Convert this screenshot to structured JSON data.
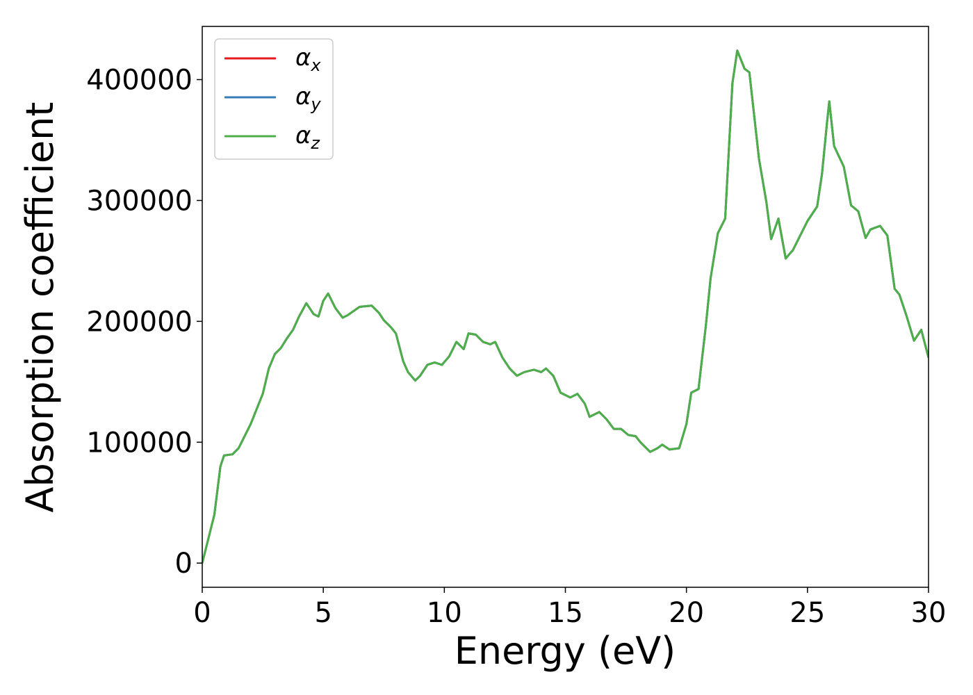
{
  "chart_data": {
    "type": "line",
    "xlabel": "Energy (eV)",
    "ylabel": "Absorption coefficient",
    "x": [
      0,
      0.25,
      0.5,
      0.75,
      0.9,
      1.25,
      1.5,
      2,
      2.5,
      2.75,
      3,
      3.25,
      3.5,
      3.75,
      4,
      4.3,
      4.6,
      4.8,
      5.0,
      5.2,
      5.5,
      5.8,
      6.0,
      6.5,
      7.0,
      7.3,
      7.5,
      7.8,
      8.0,
      8.3,
      8.5,
      8.8,
      9.0,
      9.3,
      9.6,
      9.9,
      10.2,
      10.5,
      10.8,
      11.0,
      11.3,
      11.6,
      11.9,
      12.1,
      12.4,
      12.7,
      13.0,
      13.3,
      13.7,
      14.0,
      14.2,
      14.5,
      14.8,
      15.2,
      15.5,
      15.8,
      16.0,
      16.4,
      16.7,
      17.0,
      17.3,
      17.6,
      17.9,
      18.1,
      18.5,
      18.8,
      19.0,
      19.3,
      19.7,
      20.0,
      20.2,
      20.5,
      20.8,
      21.0,
      21.3,
      21.6,
      21.9,
      22.1,
      22.4,
      22.6,
      23.0,
      23.3,
      23.5,
      23.8,
      24.1,
      24.4,
      24.7,
      25.0,
      25.4,
      25.6,
      25.8,
      25.9,
      26.1,
      26.5,
      26.8,
      27.1,
      27.4,
      27.6,
      28.0,
      28.3,
      28.6,
      28.8,
      29.1,
      29.4,
      29.7,
      30.0
    ],
    "series": [
      {
        "name": "αx",
        "color": "#e41a1c",
        "values": [
          0,
          20000,
          40000,
          80000,
          89000,
          90000,
          95000,
          115000,
          140000,
          161000,
          173000,
          178000,
          186000,
          193000,
          204000,
          215000,
          206000,
          204000,
          217000,
          223000,
          211000,
          203000,
          205000,
          212000,
          213000,
          207000,
          201000,
          195000,
          190000,
          167000,
          158000,
          151000,
          155000,
          164000,
          166000,
          164000,
          171000,
          183000,
          177000,
          190000,
          189000,
          183000,
          181000,
          183000,
          170000,
          161000,
          155000,
          158000,
          160000,
          158000,
          161000,
          155000,
          141000,
          137000,
          140000,
          132000,
          121000,
          125000,
          119000,
          111000,
          111000,
          106000,
          105000,
          100000,
          92000,
          95000,
          98000,
          94000,
          95000,
          115000,
          141000,
          144000,
          196000,
          236000,
          273000,
          285000,
          397000,
          424000,
          409000,
          406000,
          334000,
          299000,
          268000,
          285000,
          252000,
          259000,
          271000,
          283000,
          295000,
          322000,
          363000,
          382000,
          345000,
          328000,
          296000,
          291000,
          269000,
          276000,
          279000,
          271000,
          227000,
          222000,
          204000,
          184000,
          193000,
          170000
        ]
      },
      {
        "name": "αy",
        "color": "#377eb8",
        "values": [
          0,
          20000,
          40000,
          80000,
          89000,
          90000,
          95000,
          115000,
          140000,
          161000,
          173000,
          178000,
          186000,
          193000,
          204000,
          215000,
          206000,
          204000,
          217000,
          223000,
          211000,
          203000,
          205000,
          212000,
          213000,
          207000,
          201000,
          195000,
          190000,
          167000,
          158000,
          151000,
          155000,
          164000,
          166000,
          164000,
          171000,
          183000,
          177000,
          190000,
          189000,
          183000,
          181000,
          183000,
          170000,
          161000,
          155000,
          158000,
          160000,
          158000,
          161000,
          155000,
          141000,
          137000,
          140000,
          132000,
          121000,
          125000,
          119000,
          111000,
          111000,
          106000,
          105000,
          100000,
          92000,
          95000,
          98000,
          94000,
          95000,
          115000,
          141000,
          144000,
          196000,
          236000,
          273000,
          285000,
          397000,
          424000,
          409000,
          406000,
          334000,
          299000,
          268000,
          285000,
          252000,
          259000,
          271000,
          283000,
          295000,
          322000,
          363000,
          382000,
          345000,
          328000,
          296000,
          291000,
          269000,
          276000,
          279000,
          271000,
          227000,
          222000,
          204000,
          184000,
          193000,
          170000
        ]
      },
      {
        "name": "αz",
        "color": "#4daf4a",
        "values": [
          0,
          20000,
          40000,
          80000,
          89000,
          90000,
          95000,
          115000,
          140000,
          161000,
          173000,
          178000,
          186000,
          193000,
          204000,
          215000,
          206000,
          204000,
          217000,
          223000,
          211000,
          203000,
          205000,
          212000,
          213000,
          207000,
          201000,
          195000,
          190000,
          167000,
          158000,
          151000,
          155000,
          164000,
          166000,
          164000,
          171000,
          183000,
          177000,
          190000,
          189000,
          183000,
          181000,
          183000,
          170000,
          161000,
          155000,
          158000,
          160000,
          158000,
          161000,
          155000,
          141000,
          137000,
          140000,
          132000,
          121000,
          125000,
          119000,
          111000,
          111000,
          106000,
          105000,
          100000,
          92000,
          95000,
          98000,
          94000,
          95000,
          115000,
          141000,
          144000,
          196000,
          236000,
          273000,
          285000,
          397000,
          424000,
          409000,
          406000,
          334000,
          299000,
          268000,
          285000,
          252000,
          259000,
          271000,
          283000,
          295000,
          322000,
          363000,
          382000,
          345000,
          328000,
          296000,
          291000,
          269000,
          276000,
          279000,
          271000,
          227000,
          222000,
          204000,
          184000,
          193000,
          170000
        ]
      }
    ],
    "xlim": [
      0,
      30
    ],
    "xticks": [
      0,
      5,
      10,
      15,
      20,
      25,
      30
    ],
    "ylim": [
      -20000,
      444000
    ],
    "yticks": [
      0,
      100000,
      200000,
      300000,
      400000
    ],
    "grid": false,
    "legend": "upper left"
  }
}
